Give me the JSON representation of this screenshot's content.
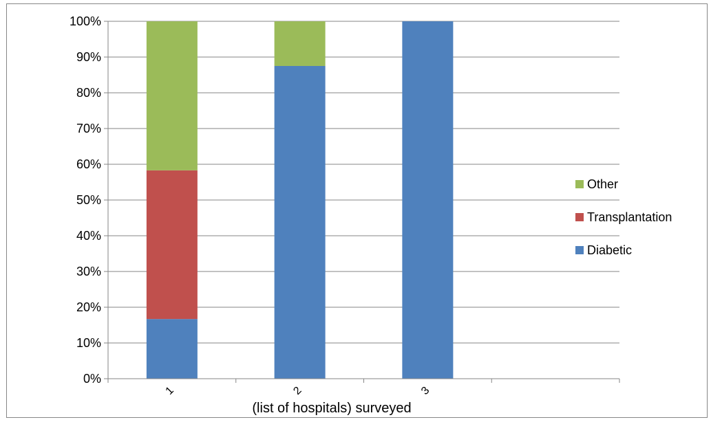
{
  "chart_data": {
    "type": "bar",
    "stacked": true,
    "percent_stacked": true,
    "categories": [
      "1",
      "2",
      "3",
      ""
    ],
    "series": [
      {
        "name": "Diabetic",
        "values": [
          16.7,
          87.5,
          100,
          0
        ],
        "color": "#4F81BD"
      },
      {
        "name": "Transplantation",
        "values": [
          41.6,
          0,
          0,
          0
        ],
        "color": "#C0504D"
      },
      {
        "name": "Other",
        "values": [
          41.7,
          12.5,
          0,
          0
        ],
        "color": "#9BBB59"
      }
    ],
    "y_ticks": [
      "0%",
      "10%",
      "20%",
      "30%",
      "40%",
      "50%",
      "60%",
      "70%",
      "80%",
      "90%",
      "100%"
    ],
    "ylim": [
      0,
      100
    ],
    "xlabel": "(list of hospitals) surveyed",
    "ylabel": "",
    "title": "",
    "grid": true,
    "legend_position": "right",
    "legend_order": [
      "Other",
      "Transplantation",
      "Diabetic"
    ]
  }
}
